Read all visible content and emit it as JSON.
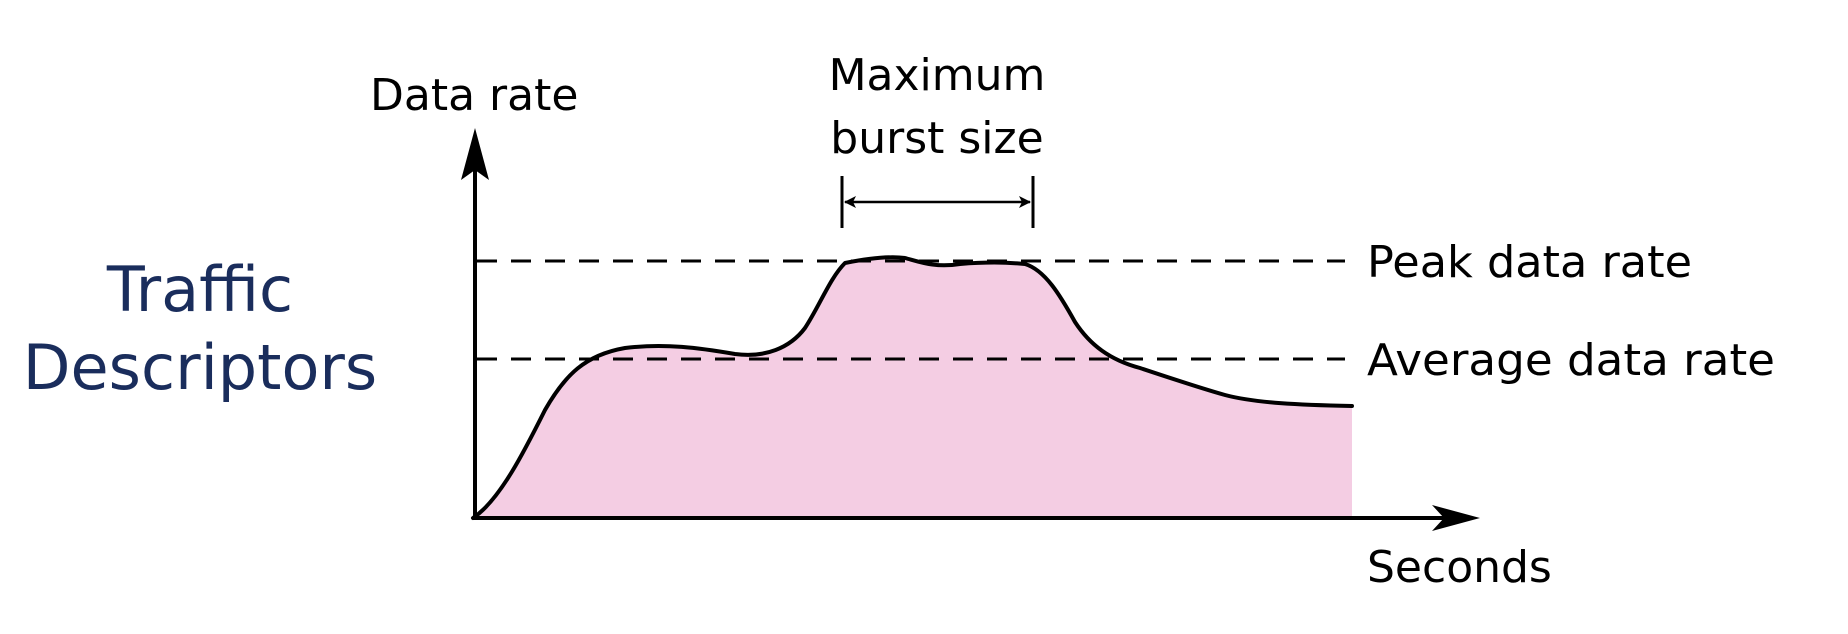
{
  "title": {
    "line1": "Traffic",
    "line2": "Descriptors"
  },
  "diagram": {
    "y_axis_label": "Data rate",
    "x_axis_label": "Seconds",
    "burst_label_line1": "Maximum",
    "burst_label_line2": "burst size",
    "peak_label": "Peak data rate",
    "average_label": "Average data rate"
  },
  "colors": {
    "title_text": "#1a2d5c",
    "area_fill": "#f4cde3",
    "line": "#000000"
  }
}
